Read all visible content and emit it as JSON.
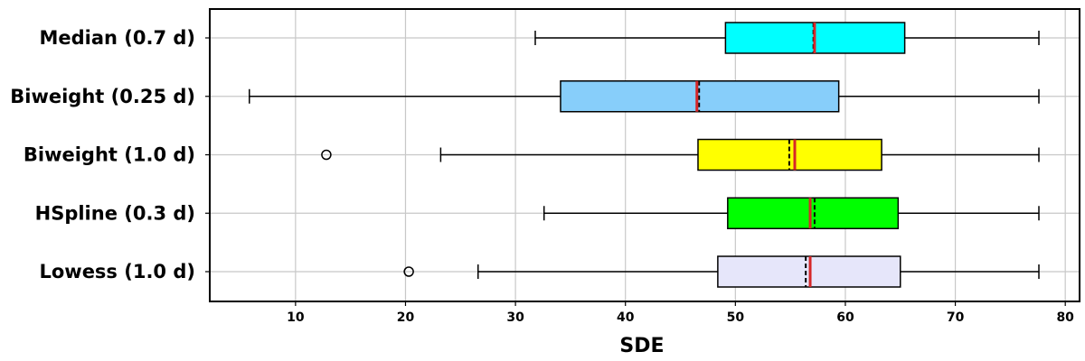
{
  "chart_data": {
    "type": "boxplot",
    "orientation": "horizontal",
    "xlabel": "SDE",
    "ylabel": "",
    "xlim": [
      2.2,
      81.3
    ],
    "xticks": [
      10,
      20,
      30,
      40,
      50,
      60,
      70,
      80
    ],
    "grid": true,
    "median_line_color": "#d62728",
    "mean_line_style": "dashed-black",
    "series": [
      {
        "name": "Median (0.7 d)",
        "color": "#00ffff",
        "whisker_low": 31.8,
        "q1": 49.1,
        "median": 57.2,
        "mean": 57.1,
        "q3": 65.4,
        "whisker_high": 77.6,
        "outliers": []
      },
      {
        "name": "Biweight (0.25 d)",
        "color": "#87cefa",
        "whisker_low": 5.8,
        "q1": 34.1,
        "median": 46.5,
        "mean": 46.7,
        "q3": 59.4,
        "whisker_high": 77.6,
        "outliers": []
      },
      {
        "name": "Biweight (1.0 d)",
        "color": "#ffff00",
        "whisker_low": 23.2,
        "q1": 46.6,
        "median": 55.4,
        "mean": 54.9,
        "q3": 63.3,
        "whisker_high": 77.6,
        "outliers": [
          12.8
        ]
      },
      {
        "name": "HSpline (0.3 d)",
        "color": "#00ff00",
        "whisker_low": 32.6,
        "q1": 49.3,
        "median": 56.8,
        "mean": 57.2,
        "q3": 64.8,
        "whisker_high": 77.6,
        "outliers": []
      },
      {
        "name": "Lowess (1.0 d)",
        "color": "#e6e6fa",
        "whisker_low": 26.6,
        "q1": 48.4,
        "median": 56.8,
        "mean": 56.4,
        "q3": 65.0,
        "whisker_high": 77.6,
        "outliers": [
          20.3
        ]
      }
    ]
  }
}
